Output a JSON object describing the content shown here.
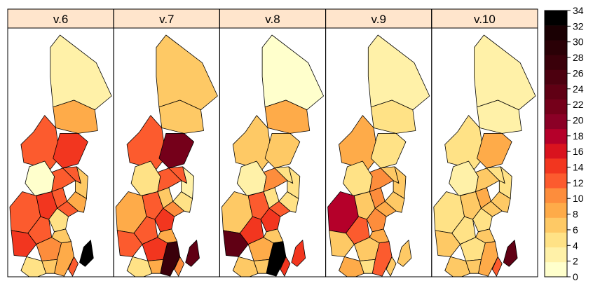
{
  "panels": [
    {
      "title": "v.6",
      "values": [
        3.5,
        8.5,
        11.5,
        14.5,
        1.5,
        12.5,
        13.5,
        11.5,
        12.5,
        13,
        12.5,
        8,
        6,
        5,
        12,
        13.5,
        10.5,
        6,
        4,
        9,
        7.5,
        13,
        34
      ]
    },
    {
      "title": "v.7",
      "values": [
        7.5,
        7,
        12.5,
        22.5,
        4.5,
        8,
        12,
        6.5,
        11,
        13,
        12.5,
        4.5,
        2,
        15,
        12.5,
        12,
        14,
        8.5,
        4.5,
        27,
        8,
        11,
        24
      ]
    },
    {
      "title": "v.8",
      "values": [
        1.5,
        9,
        6.5,
        6,
        3.5,
        7,
        12.5,
        5.5,
        12.5,
        10.5,
        4.5,
        5.5,
        5,
        15,
        14.5,
        23,
        8.5,
        6.5,
        7.5,
        33,
        6.5,
        14,
        14
      ]
    },
    {
      "title": "v.9",
      "values": [
        3.5,
        5.5,
        9,
        5.5,
        4.5,
        18.5,
        6.5,
        9.5,
        8.5,
        10,
        6,
        6,
        6.5,
        10.5,
        12.5,
        6,
        6.5,
        8.5,
        9,
        13,
        5,
        7.5,
        7
      ]
    },
    {
      "title": "v.10",
      "values": [
        3.5,
        3.5,
        5,
        8.5,
        2,
        5,
        6,
        8,
        7,
        6.5,
        5,
        6,
        5,
        4,
        4.5,
        6,
        5,
        7,
        6,
        8,
        6.5,
        13,
        23
      ]
    }
  ],
  "legend": {
    "ticks": [
      0,
      2,
      4,
      6,
      8,
      10,
      12,
      14,
      16,
      18,
      20,
      22,
      24,
      26,
      28,
      30,
      32,
      34
    ],
    "min": 0,
    "max": 34,
    "colors": [
      "#FFFFCC",
      "#FFF1A8",
      "#FFE286",
      "#FEC965",
      "#FEAB49",
      "#FD8D3C",
      "#FC5B2E",
      "#F2361F",
      "#D9131E",
      "#B5002A",
      "#8B0026",
      "#75001A",
      "#600014",
      "#4C000F",
      "#3A000A",
      "#2A0006",
      "#1A0003",
      "#000000"
    ]
  },
  "colors": {
    "strip_fill": "#FFE5CC",
    "border": "#000000",
    "background": "#FFFFFF"
  }
}
